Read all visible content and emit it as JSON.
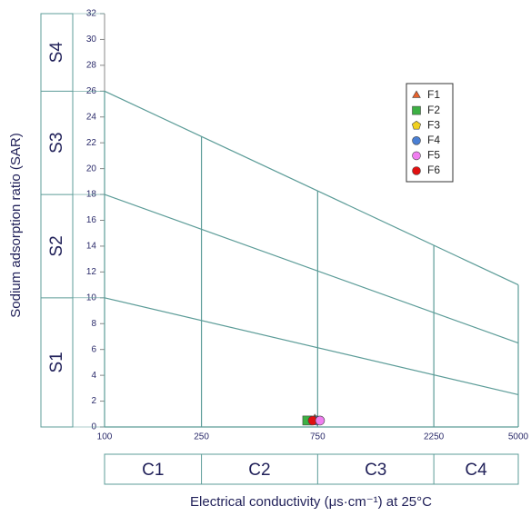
{
  "chart_data": {
    "type": "scatter",
    "x_label": "Electrical conductivity (μs·cm⁻¹) at 25°C",
    "y_label": "Sodium adsorption ratio (SAR)",
    "xlog": true,
    "xlim": [
      100,
      5000
    ],
    "xticks": [
      100,
      250,
      750,
      2250,
      5000
    ],
    "ylim": [
      0,
      32
    ],
    "yticks": [
      0,
      2,
      4,
      6,
      8,
      10,
      12,
      14,
      16,
      18,
      20,
      22,
      24,
      26,
      28,
      30,
      32
    ],
    "salinity_classes": [
      "C1",
      "C2",
      "C3",
      "C4"
    ],
    "sodium_classes": [
      "S1",
      "S2",
      "S3",
      "S4"
    ],
    "sodium_class_bounds": [
      0,
      10,
      18,
      26,
      32
    ],
    "reference_lines": [
      {
        "x": [
          100,
          5000
        ],
        "y": [
          26,
          11
        ]
      },
      {
        "x": [
          100,
          5000
        ],
        "y": [
          18,
          6.5
        ]
      },
      {
        "x": [
          100,
          5000
        ],
        "y": [
          10,
          2.5
        ]
      }
    ],
    "line_color": "#5c9c98",
    "series": [
      {
        "name": "F1",
        "color": "#e8622c",
        "marker": "triangle",
        "x": [
          730
        ],
        "values": [
          0.6
        ]
      },
      {
        "name": "F2",
        "color": "#3cb043",
        "marker": "square",
        "x": [
          680
        ],
        "values": [
          0.5
        ]
      },
      {
        "name": "F3",
        "color": "#f0d020",
        "marker": "pentagon",
        "x": [
          735
        ],
        "values": [
          0.5
        ]
      },
      {
        "name": "F4",
        "color": "#4a7fd4",
        "marker": "circle",
        "x": [
          745
        ],
        "values": [
          0.5
        ]
      },
      {
        "name": "F5",
        "color": "#f07ef0",
        "marker": "circle",
        "x": [
          767
        ],
        "values": [
          0.5
        ]
      },
      {
        "name": "F6",
        "color": "#e01010",
        "marker": "circle",
        "x": [
          716
        ],
        "values": [
          0.5
        ]
      }
    ]
  }
}
